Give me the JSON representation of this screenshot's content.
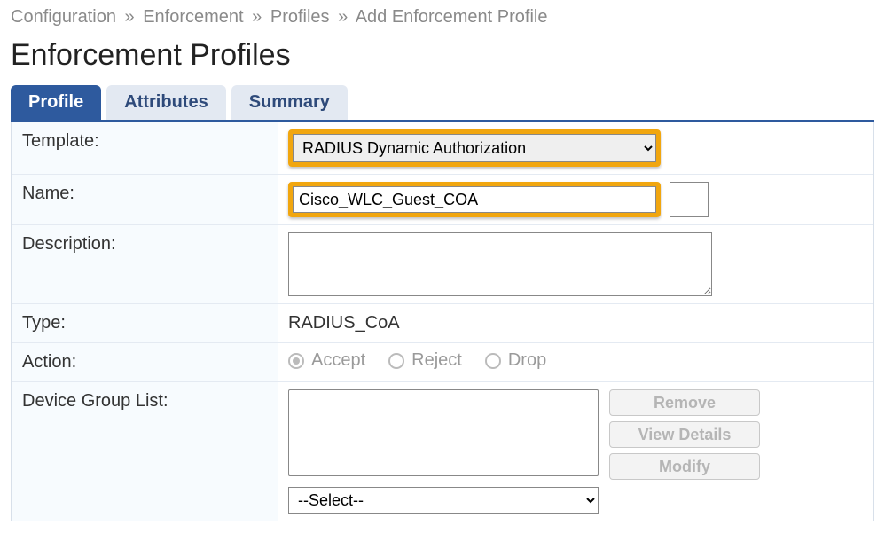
{
  "breadcrumb": {
    "items": [
      "Configuration",
      "Enforcement",
      "Profiles",
      "Add Enforcement Profile"
    ],
    "separator": "»"
  },
  "page_title": "Enforcement Profiles",
  "tabs": [
    {
      "label": "Profile",
      "active": true
    },
    {
      "label": "Attributes",
      "active": false
    },
    {
      "label": "Summary",
      "active": false
    }
  ],
  "form": {
    "template": {
      "label": "Template:",
      "value": "RADIUS Dynamic Authorization"
    },
    "name": {
      "label": "Name:",
      "value": "Cisco_WLC_Guest_COA"
    },
    "description": {
      "label": "Description:",
      "value": ""
    },
    "type": {
      "label": "Type:",
      "value": "RADIUS_CoA"
    },
    "action": {
      "label": "Action:",
      "options": [
        "Accept",
        "Reject",
        "Drop"
      ],
      "selected": "Accept"
    },
    "device_group_list": {
      "label": "Device Group List:",
      "select_placeholder": "--Select--",
      "buttons": {
        "remove": "Remove",
        "view_details": "View Details",
        "modify": "Modify"
      }
    }
  },
  "colors": {
    "tab_active_bg": "#2e5a9e",
    "tab_inactive_bg": "#e3e9f2",
    "highlight_border": "#f1a60f",
    "breadcrumb_text": "#8a8a8a"
  }
}
